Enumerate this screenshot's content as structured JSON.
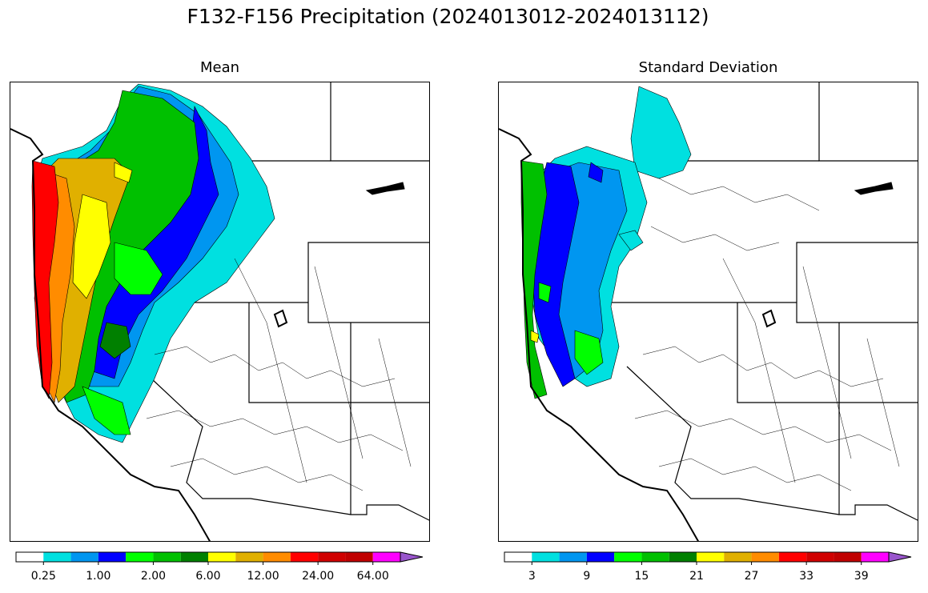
{
  "figure": {
    "title": "F132-F156 Precipitation (2024013012-2024013112)"
  },
  "panels": [
    {
      "id": "mean",
      "title": "Mean",
      "colorbar": {
        "colors": [
          "#ffffff",
          "#00e0e0",
          "#0096f0",
          "#0000ff",
          "#00ff00",
          "#00c000",
          "#008000",
          "#ffff00",
          "#e0b000",
          "#ff8c00",
          "#ff0000",
          "#d00000",
          "#c00000",
          "#ff00ff",
          "#9955cc"
        ],
        "ticks": [
          "0.25",
          "1.00",
          "2.00",
          "6.00",
          "12.00",
          "24.00",
          "64.00"
        ],
        "extend": "max"
      }
    },
    {
      "id": "stddev",
      "title": "Standard Deviation",
      "colorbar": {
        "colors": [
          "#ffffff",
          "#00e0e0",
          "#0096f0",
          "#0000ff",
          "#00ff00",
          "#00c000",
          "#008000",
          "#ffff00",
          "#e0b000",
          "#ff8c00",
          "#ff0000",
          "#d00000",
          "#c00000",
          "#ff00ff",
          "#9955cc"
        ],
        "ticks": [
          "3",
          "9",
          "15",
          "21",
          "27",
          "33",
          "39"
        ],
        "extend": "max"
      }
    }
  ]
}
